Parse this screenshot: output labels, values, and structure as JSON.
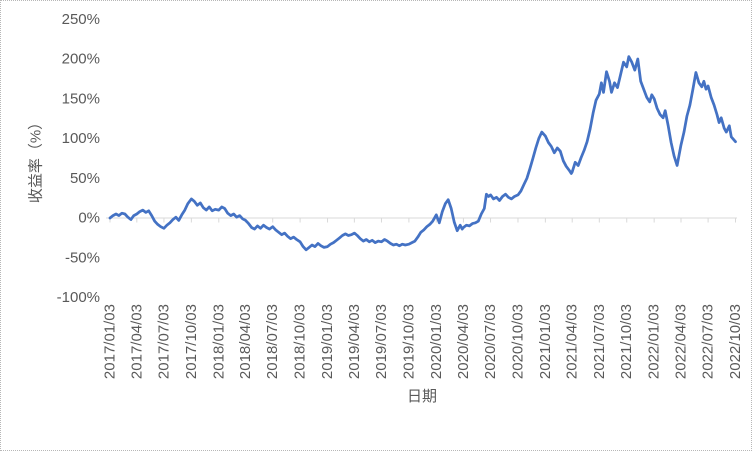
{
  "chart_data": {
    "type": "line",
    "title": "",
    "xlabel": "日期",
    "ylabel": "收益率（%）",
    "legend": "none",
    "grid": "none",
    "colors": {
      "line": "#4472C4",
      "axis": "#D9D9D9",
      "text": "#595959",
      "frame_border": "#B7B7B7"
    },
    "x_axis": {
      "min": "2017/01/03",
      "max": "2022/10/08",
      "tick_labels": [
        "2017/01/03",
        "2017/04/03",
        "2017/07/03",
        "2017/10/03",
        "2018/01/03",
        "2018/04/03",
        "2018/07/03",
        "2018/10/03",
        "2019/01/03",
        "2019/04/03",
        "2019/07/03",
        "2019/10/03",
        "2020/01/03",
        "2020/04/03",
        "2020/07/03",
        "2020/10/03",
        "2021/01/03",
        "2021/04/03",
        "2021/07/03",
        "2021/10/03",
        "2022/01/03",
        "2022/04/03",
        "2022/07/03",
        "2022/10/03"
      ]
    },
    "y_axis": {
      "min": -100,
      "max": 250,
      "tick_interval": 50,
      "tick_values": [
        250,
        200,
        150,
        100,
        50,
        0,
        -50,
        -100
      ],
      "tick_labels": [
        "250%",
        "200%",
        "150%",
        "100%",
        "50%",
        "0%",
        "-50%",
        "-100%"
      ]
    },
    "series": [
      {
        "name": "收益率",
        "unit": "%",
        "points": [
          [
            "2017/01/03",
            0
          ],
          [
            "2017/01/13",
            3
          ],
          [
            "2017/01/23",
            5
          ],
          [
            "2017/02/02",
            3
          ],
          [
            "2017/02/12",
            6
          ],
          [
            "2017/02/22",
            5
          ],
          [
            "2017/03/04",
            1
          ],
          [
            "2017/03/14",
            -2
          ],
          [
            "2017/03/24",
            3
          ],
          [
            "2017/04/03",
            5
          ],
          [
            "2017/04/13",
            8
          ],
          [
            "2017/04/23",
            10
          ],
          [
            "2017/05/03",
            7
          ],
          [
            "2017/05/13",
            9
          ],
          [
            "2017/05/23",
            3
          ],
          [
            "2017/06/02",
            -4
          ],
          [
            "2017/06/12",
            -8
          ],
          [
            "2017/06/22",
            -11
          ],
          [
            "2017/07/03",
            -13
          ],
          [
            "2017/07/13",
            -9
          ],
          [
            "2017/07/23",
            -6
          ],
          [
            "2017/08/02",
            -2
          ],
          [
            "2017/08/12",
            1
          ],
          [
            "2017/08/22",
            -3
          ],
          [
            "2017/09/01",
            4
          ],
          [
            "2017/09/11",
            10
          ],
          [
            "2017/09/21",
            18
          ],
          [
            "2017/10/03",
            24
          ],
          [
            "2017/10/13",
            21
          ],
          [
            "2017/10/23",
            16
          ],
          [
            "2017/11/02",
            19
          ],
          [
            "2017/11/12",
            13
          ],
          [
            "2017/11/22",
            10
          ],
          [
            "2017/12/02",
            14
          ],
          [
            "2017/12/12",
            9
          ],
          [
            "2017/12/22",
            11
          ],
          [
            "2018/01/03",
            10
          ],
          [
            "2018/01/13",
            14
          ],
          [
            "2018/01/23",
            12
          ],
          [
            "2018/02/02",
            6
          ],
          [
            "2018/02/12",
            3
          ],
          [
            "2018/02/22",
            5
          ],
          [
            "2018/03/04",
            1
          ],
          [
            "2018/03/14",
            3
          ],
          [
            "2018/03/24",
            -1
          ],
          [
            "2018/04/03",
            -3
          ],
          [
            "2018/04/13",
            -7
          ],
          [
            "2018/04/23",
            -12
          ],
          [
            "2018/05/03",
            -14
          ],
          [
            "2018/05/13",
            -10
          ],
          [
            "2018/05/23",
            -13
          ],
          [
            "2018/06/02",
            -9
          ],
          [
            "2018/06/12",
            -12
          ],
          [
            "2018/06/22",
            -14
          ],
          [
            "2018/07/03",
            -11
          ],
          [
            "2018/07/13",
            -15
          ],
          [
            "2018/07/23",
            -18
          ],
          [
            "2018/08/02",
            -21
          ],
          [
            "2018/08/12",
            -19
          ],
          [
            "2018/08/22",
            -23
          ],
          [
            "2018/09/01",
            -26
          ],
          [
            "2018/09/11",
            -24
          ],
          [
            "2018/09/21",
            -27
          ],
          [
            "2018/10/03",
            -30
          ],
          [
            "2018/10/13",
            -36
          ],
          [
            "2018/10/23",
            -40
          ],
          [
            "2018/11/02",
            -37
          ],
          [
            "2018/11/12",
            -34
          ],
          [
            "2018/11/22",
            -36
          ],
          [
            "2018/12/02",
            -32
          ],
          [
            "2018/12/12",
            -35
          ],
          [
            "2018/12/22",
            -37
          ],
          [
            "2019/01/03",
            -36
          ],
          [
            "2019/01/13",
            -33
          ],
          [
            "2019/01/23",
            -31
          ],
          [
            "2019/02/02",
            -28
          ],
          [
            "2019/02/12",
            -25
          ],
          [
            "2019/02/22",
            -22
          ],
          [
            "2019/03/04",
            -20
          ],
          [
            "2019/03/14",
            -22
          ],
          [
            "2019/03/24",
            -21
          ],
          [
            "2019/04/03",
            -19
          ],
          [
            "2019/04/13",
            -22
          ],
          [
            "2019/04/23",
            -26
          ],
          [
            "2019/05/03",
            -29
          ],
          [
            "2019/05/13",
            -27
          ],
          [
            "2019/05/23",
            -30
          ],
          [
            "2019/06/02",
            -28
          ],
          [
            "2019/06/12",
            -31
          ],
          [
            "2019/06/22",
            -29
          ],
          [
            "2019/07/03",
            -30
          ],
          [
            "2019/07/13",
            -27
          ],
          [
            "2019/07/23",
            -29
          ],
          [
            "2019/08/02",
            -32
          ],
          [
            "2019/08/12",
            -34
          ],
          [
            "2019/08/22",
            -33
          ],
          [
            "2019/09/01",
            -35
          ],
          [
            "2019/09/11",
            -33
          ],
          [
            "2019/09/21",
            -34
          ],
          [
            "2019/10/03",
            -33
          ],
          [
            "2019/10/13",
            -31
          ],
          [
            "2019/10/23",
            -29
          ],
          [
            "2019/11/02",
            -24
          ],
          [
            "2019/11/12",
            -18
          ],
          [
            "2019/11/22",
            -15
          ],
          [
            "2019/12/02",
            -11
          ],
          [
            "2019/12/12",
            -8
          ],
          [
            "2019/12/22",
            -4
          ],
          [
            "2020/01/03",
            4
          ],
          [
            "2020/01/13",
            -6
          ],
          [
            "2020/01/23",
            8
          ],
          [
            "2020/02/02",
            18
          ],
          [
            "2020/02/12",
            23
          ],
          [
            "2020/02/22",
            12
          ],
          [
            "2020/03/03",
            -5
          ],
          [
            "2020/03/13",
            -16
          ],
          [
            "2020/03/23",
            -9
          ],
          [
            "2020/03/30",
            -14
          ],
          [
            "2020/04/03",
            -12
          ],
          [
            "2020/04/13",
            -9
          ],
          [
            "2020/04/23",
            -10
          ],
          [
            "2020/05/03",
            -7
          ],
          [
            "2020/05/13",
            -6
          ],
          [
            "2020/05/23",
            -4
          ],
          [
            "2020/06/02",
            5
          ],
          [
            "2020/06/12",
            12
          ],
          [
            "2020/06/19",
            30
          ],
          [
            "2020/06/26",
            27
          ],
          [
            "2020/07/03",
            29
          ],
          [
            "2020/07/13",
            24
          ],
          [
            "2020/07/23",
            26
          ],
          [
            "2020/08/02",
            22
          ],
          [
            "2020/08/12",
            27
          ],
          [
            "2020/08/22",
            30
          ],
          [
            "2020/09/01",
            26
          ],
          [
            "2020/09/11",
            24
          ],
          [
            "2020/09/21",
            27
          ],
          [
            "2020/10/03",
            29
          ],
          [
            "2020/10/13",
            34
          ],
          [
            "2020/10/23",
            42
          ],
          [
            "2020/11/02",
            50
          ],
          [
            "2020/11/12",
            62
          ],
          [
            "2020/11/22",
            75
          ],
          [
            "2020/12/02",
            88
          ],
          [
            "2020/12/12",
            100
          ],
          [
            "2020/12/22",
            108
          ],
          [
            "2021/01/03",
            103
          ],
          [
            "2021/01/13",
            95
          ],
          [
            "2021/01/23",
            90
          ],
          [
            "2021/02/02",
            82
          ],
          [
            "2021/02/12",
            88
          ],
          [
            "2021/02/22",
            84
          ],
          [
            "2021/03/04",
            72
          ],
          [
            "2021/03/14",
            65
          ],
          [
            "2021/03/24",
            60
          ],
          [
            "2021/03/31",
            56
          ],
          [
            "2021/04/03",
            58
          ],
          [
            "2021/04/13",
            70
          ],
          [
            "2021/04/23",
            66
          ],
          [
            "2021/05/03",
            76
          ],
          [
            "2021/05/13",
            85
          ],
          [
            "2021/05/23",
            96
          ],
          [
            "2021/06/02",
            112
          ],
          [
            "2021/06/12",
            132
          ],
          [
            "2021/06/22",
            148
          ],
          [
            "2021/07/03",
            156
          ],
          [
            "2021/07/10",
            170
          ],
          [
            "2021/07/17",
            158
          ],
          [
            "2021/07/27",
            184
          ],
          [
            "2021/08/06",
            172
          ],
          [
            "2021/08/13",
            158
          ],
          [
            "2021/08/23",
            170
          ],
          [
            "2021/09/02",
            164
          ],
          [
            "2021/09/12",
            180
          ],
          [
            "2021/09/22",
            196
          ],
          [
            "2021/10/03",
            190
          ],
          [
            "2021/10/10",
            203
          ],
          [
            "2021/10/20",
            196
          ],
          [
            "2021/10/30",
            186
          ],
          [
            "2021/11/09",
            200
          ],
          [
            "2021/11/19",
            172
          ],
          [
            "2021/11/29",
            162
          ],
          [
            "2021/12/09",
            152
          ],
          [
            "2021/12/19",
            146
          ],
          [
            "2021/12/26",
            155
          ],
          [
            "2022/01/03",
            150
          ],
          [
            "2022/01/13",
            138
          ],
          [
            "2022/01/23",
            130
          ],
          [
            "2022/02/02",
            126
          ],
          [
            "2022/02/09",
            135
          ],
          [
            "2022/02/19",
            116
          ],
          [
            "2022/03/01",
            95
          ],
          [
            "2022/03/11",
            78
          ],
          [
            "2022/03/21",
            66
          ],
          [
            "2022/03/28",
            80
          ],
          [
            "2022/04/03",
            92
          ],
          [
            "2022/04/13",
            108
          ],
          [
            "2022/04/23",
            128
          ],
          [
            "2022/05/03",
            142
          ],
          [
            "2022/05/13",
            162
          ],
          [
            "2022/05/23",
            183
          ],
          [
            "2022/06/02",
            170
          ],
          [
            "2022/06/12",
            165
          ],
          [
            "2022/06/19",
            172
          ],
          [
            "2022/06/26",
            162
          ],
          [
            "2022/07/03",
            166
          ],
          [
            "2022/07/13",
            152
          ],
          [
            "2022/07/23",
            142
          ],
          [
            "2022/08/02",
            130
          ],
          [
            "2022/08/09",
            120
          ],
          [
            "2022/08/16",
            126
          ],
          [
            "2022/08/26",
            113
          ],
          [
            "2022/09/02",
            108
          ],
          [
            "2022/09/12",
            116
          ],
          [
            "2022/09/19",
            102
          ],
          [
            "2022/10/03",
            96
          ]
        ]
      }
    ]
  }
}
